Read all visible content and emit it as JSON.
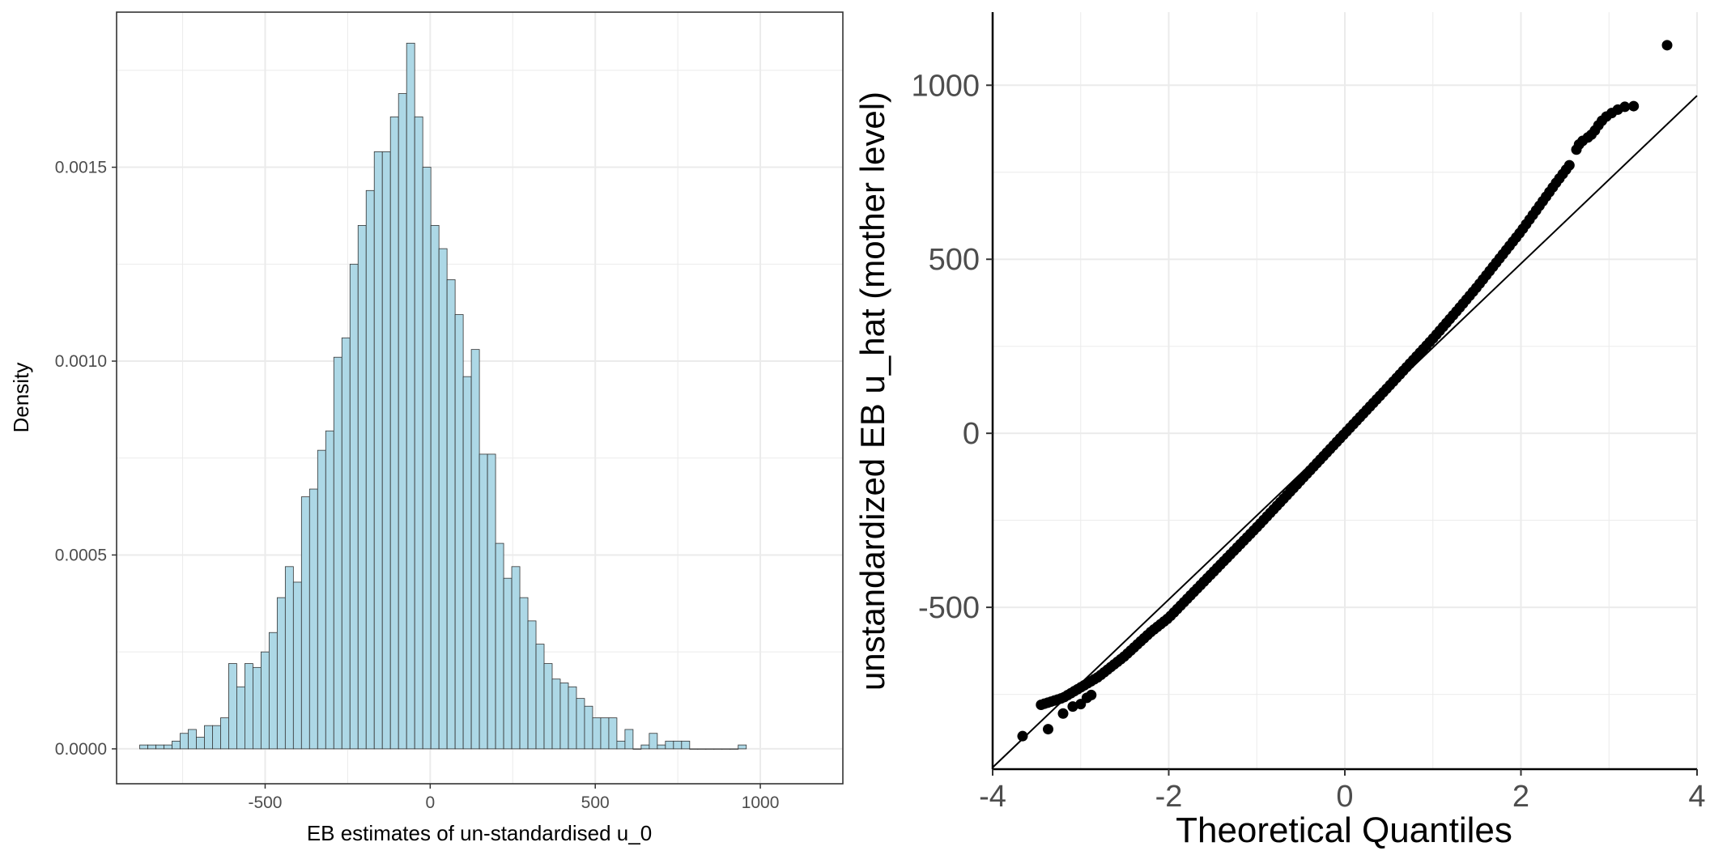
{
  "chart_data": [
    {
      "type": "bar",
      "subtype": "histogram",
      "xlabel": "EB estimates of un-standardised u_0",
      "ylabel": "Density",
      "xlim": [
        -950,
        1250
      ],
      "ylim": [
        -9e-05,
        0.0019
      ],
      "x_ticks": [
        -500,
        0,
        500,
        1000
      ],
      "x_tick_labels": [
        "-500",
        "0",
        "500",
        "1000"
      ],
      "y_ticks": [
        0.0,
        0.0005,
        0.001,
        0.0015
      ],
      "y_tick_labels": [
        "0.0000",
        "0.0005",
        "0.0010",
        "0.0015"
      ],
      "grid": true,
      "panel_border": true,
      "colors": {
        "bar_fill": "#add8e6",
        "bar_stroke": "#333333",
        "grid": "#ebebeb",
        "axis": "#333333"
      },
      "bin_width": 24.5,
      "bins_start": -880,
      "densities": [
        1e-05,
        1e-05,
        1e-05,
        1e-05,
        2e-05,
        4e-05,
        5e-05,
        3e-05,
        6e-05,
        6e-05,
        8e-05,
        0.00022,
        0.00016,
        0.00022,
        0.00021,
        0.00025,
        0.0003,
        0.00039,
        0.00047,
        0.00043,
        0.00065,
        0.00067,
        0.00077,
        0.00082,
        0.00101,
        0.00106,
        0.00125,
        0.00135,
        0.00144,
        0.00154,
        0.00154,
        0.00163,
        0.00169,
        0.00182,
        0.00163,
        0.0015,
        0.00135,
        0.00129,
        0.00121,
        0.00112,
        0.00096,
        0.00103,
        0.00076,
        0.00076,
        0.00053,
        0.00044,
        0.00047,
        0.00039,
        0.00033,
        0.00027,
        0.00022,
        0.00018,
        0.00017,
        0.00016,
        0.00013,
        0.00011,
        8e-05,
        8e-05,
        8e-05,
        2e-05,
        5e-05,
        0.0,
        1e-05,
        4e-05,
        1e-05,
        2e-05,
        2e-05,
        2e-05,
        0.0,
        0.0,
        0.0,
        0.0,
        0.0,
        0.0,
        1e-05
      ]
    },
    {
      "type": "scatter",
      "subtype": "qq-plot",
      "xlabel": "Theoretical Quantiles",
      "ylabel": "unstandardized EB u_hat (mother level)",
      "xlim": [
        -4.0,
        4.0
      ],
      "ylim": [
        -965,
        1210
      ],
      "x_ticks": [
        -4,
        -2,
        0,
        2,
        4
      ],
      "x_tick_labels": [
        "-4",
        "-2",
        "0",
        "2",
        "4"
      ],
      "y_ticks": [
        -500,
        0,
        500,
        1000
      ],
      "y_tick_labels": [
        "-500",
        "0",
        "500",
        "1000"
      ],
      "grid": true,
      "colors": {
        "points": "#000000",
        "reference_line": "#000000",
        "grid": "#ebebeb",
        "axis": "#000000"
      },
      "reference_line": {
        "x": [
          -4.0,
          4.0
        ],
        "y": [
          -960,
          970
        ]
      },
      "curve_knots": [
        [
          -3.45,
          -780
        ],
        [
          -3.2,
          -760
        ],
        [
          -3.0,
          -730
        ],
        [
          -2.8,
          -700
        ],
        [
          -2.5,
          -640
        ],
        [
          -2.2,
          -570
        ],
        [
          -2.0,
          -530
        ],
        [
          -1.5,
          -400
        ],
        [
          -1.0,
          -270
        ],
        [
          -0.5,
          -135
        ],
        [
          0.0,
          0
        ],
        [
          0.5,
          135
        ],
        [
          1.0,
          272
        ],
        [
          1.3,
          360
        ],
        [
          1.5,
          420
        ],
        [
          1.75,
          500
        ],
        [
          2.0,
          580
        ],
        [
          2.2,
          650
        ],
        [
          2.4,
          720
        ],
        [
          2.55,
          770
        ]
      ],
      "curve_point_count": 160,
      "points": [
        [
          -3.66,
          -870
        ],
        [
          -3.37,
          -850
        ],
        [
          -3.2,
          -805
        ],
        [
          -3.09,
          -785
        ],
        [
          -3.0,
          -778
        ],
        [
          -2.93,
          -760
        ],
        [
          -2.88,
          -752
        ],
        [
          2.63,
          815
        ],
        [
          2.66,
          830
        ],
        [
          2.7,
          840
        ],
        [
          2.76,
          850
        ],
        [
          2.8,
          858
        ],
        [
          2.84,
          870
        ],
        [
          2.88,
          885
        ],
        [
          2.92,
          898
        ],
        [
          2.97,
          910
        ],
        [
          3.03,
          920
        ],
        [
          3.1,
          930
        ],
        [
          3.18,
          938
        ],
        [
          3.28,
          940
        ],
        [
          3.66,
          1115
        ]
      ]
    }
  ]
}
